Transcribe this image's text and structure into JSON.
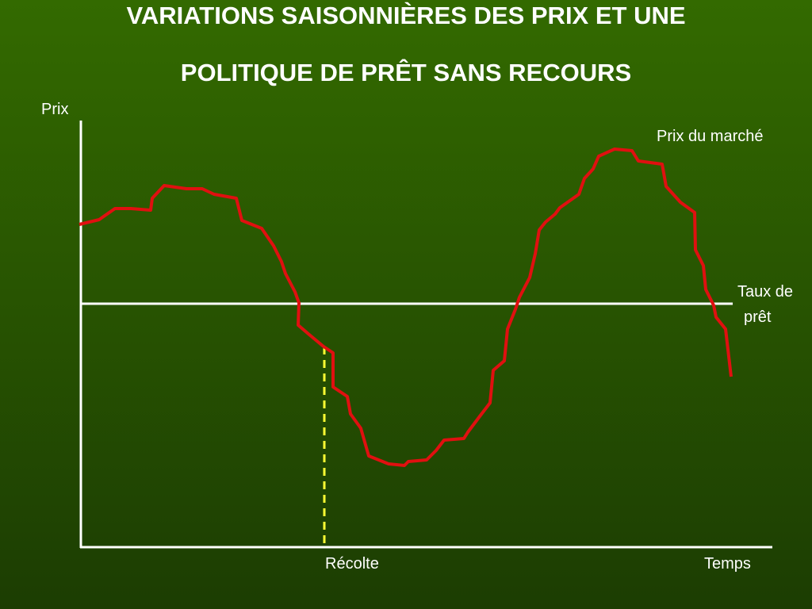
{
  "title": [
    "VARIATIONS SAISONNIÈRES DES PRIX ET UNE",
    "POLITIQUE DE PRÊT SANS RECOURS"
  ],
  "y_axis_label": "Prix",
  "x_axis_label": "Temps",
  "curve_label": "Prix du marché",
  "loan_rate_label": [
    "Taux de",
    "prêt"
  ],
  "harvest_label": "Récolte"
}
